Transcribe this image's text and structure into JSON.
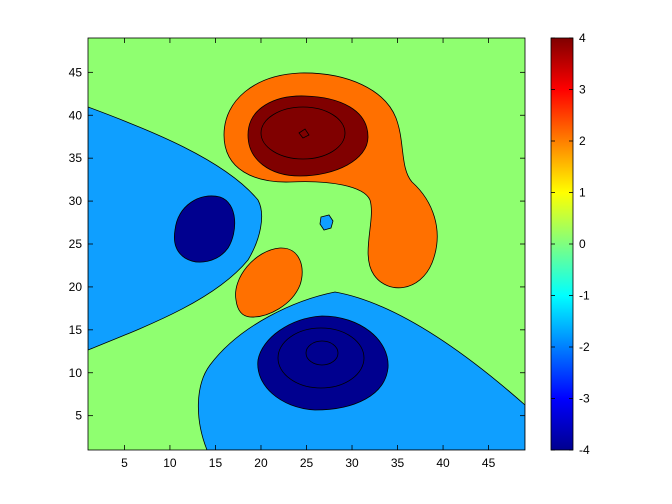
{
  "chart_data": {
    "type": "filled-contour",
    "xlim": [
      1,
      49
    ],
    "ylim": [
      1,
      49
    ],
    "x_ticks": [
      5,
      10,
      15,
      20,
      25,
      30,
      35,
      40,
      45
    ],
    "y_ticks": [
      5,
      10,
      15,
      20,
      25,
      30,
      35,
      40,
      45
    ],
    "x_tick_labels": [
      "5",
      "10",
      "15",
      "20",
      "25",
      "30",
      "35",
      "40",
      "45"
    ],
    "y_tick_labels": [
      "5",
      "10",
      "15",
      "20",
      "25",
      "30",
      "35",
      "40",
      "45"
    ],
    "contour_levels": [
      -4,
      -2,
      0,
      2,
      4
    ],
    "colorbar": {
      "range": [
        -4,
        4
      ],
      "ticks": [
        -4,
        -3,
        -2,
        -1,
        0,
        1,
        2,
        3,
        4
      ],
      "tick_labels": [
        "-4",
        "-3",
        "-2",
        "-1",
        "0",
        "1",
        "2",
        "3",
        "4"
      ],
      "colormap": "jet"
    },
    "fill_colors": {
      "below_-4": "#000080",
      "-4_to_-2": "#00008F",
      "-2_to_0": "#0F9FFF",
      "0_to_2": "#8FFF70",
      "2_to_4": "#FF7000",
      "above_4": "#800000"
    },
    "features": [
      {
        "kind": "peak",
        "x": 25,
        "y": 37.5,
        "value": 4.5
      },
      {
        "kind": "trough",
        "x": 26.5,
        "y": 12,
        "value": -4.5
      },
      {
        "kind": "trough",
        "x": 14,
        "y": 26.5,
        "value": -2.5
      },
      {
        "kind": "ridge",
        "x": 20,
        "y": 20,
        "value": 2.3
      },
      {
        "kind": "lobe",
        "x": 37,
        "y": 25,
        "value": 2.3
      },
      {
        "kind": "dip",
        "x": 27.5,
        "y": 27,
        "value": -0.3
      }
    ]
  }
}
